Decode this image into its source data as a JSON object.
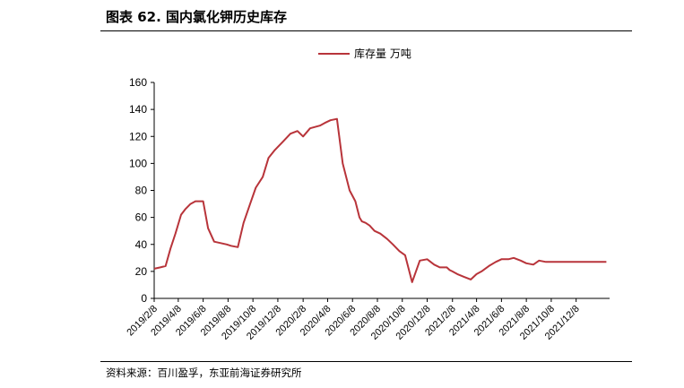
{
  "header": {
    "title": "图表 62. 国内氯化钾历史库存"
  },
  "footer": {
    "source": "资料来源：百川盈孚，东亚前海证券研究所"
  },
  "chart_data": {
    "type": "line",
    "title": "",
    "xlabel": "",
    "ylabel": "",
    "ylim": [
      0,
      160
    ],
    "yticks": [
      "0",
      "20",
      "40",
      "60",
      "80",
      "100",
      "120",
      "140",
      "160"
    ],
    "legend": {
      "position": "top",
      "entries": [
        "库存量 万吨"
      ]
    },
    "grid": false,
    "line_color": "#b8343a",
    "x_tick_labels": [
      "2019/2/8",
      "2019/4/8",
      "2019/6/8",
      "2019/8/8",
      "2019/10/8",
      "2019/12/8",
      "2020/2/8",
      "2020/4/8",
      "2020/6/8",
      "2020/8/8",
      "2020/10/8",
      "2020/12/8",
      "2021/2/8",
      "2021/4/8",
      "2021/6/8",
      "2021/8/8",
      "2021/10/8",
      "2021/12/8"
    ],
    "x_range_months": [
      "2019/2/8",
      "2022/2/28"
    ],
    "series": [
      {
        "name": "库存量 万吨",
        "x": [
          "2019/2/8",
          "2019/2/23",
          "2019/3/8",
          "2019/3/20",
          "2019/4/1",
          "2019/4/15",
          "2019/4/25",
          "2019/5/8",
          "2019/5/20",
          "2019/6/8",
          "2019/6/20",
          "2019/7/5",
          "2019/7/20",
          "2019/8/5",
          "2019/8/15",
          "2019/9/1",
          "2019/9/15",
          "2019/10/1",
          "2019/10/15",
          "2019/11/1",
          "2019/11/15",
          "2019/12/1",
          "2019/12/20",
          "2020/1/8",
          "2020/1/25",
          "2020/2/8",
          "2020/2/25",
          "2020/3/8",
          "2020/3/20",
          "2020/4/1",
          "2020/4/15",
          "2020/5/1",
          "2020/5/15",
          "2020/6/1",
          "2020/6/15",
          "2020/6/25",
          "2020/7/1",
          "2020/7/10",
          "2020/7/20",
          "2020/8/1",
          "2020/8/15",
          "2020/9/1",
          "2020/9/15",
          "2020/10/1",
          "2020/10/15",
          "2020/11/1",
          "2020/11/20",
          "2020/12/8",
          "2020/12/25",
          "2021/1/8",
          "2021/1/25",
          "2021/2/1",
          "2021/2/8",
          "2021/2/20",
          "2021/3/8",
          "2021/3/25",
          "2021/4/8",
          "2021/4/20",
          "2021/5/8",
          "2021/5/25",
          "2021/6/8",
          "2021/6/25",
          "2021/7/8",
          "2021/7/25",
          "2021/8/8",
          "2021/8/25",
          "2021/9/8",
          "2021/9/25",
          "2021/10/8",
          "2021/10/25",
          "2021/11/8",
          "2021/11/25",
          "2021/12/8",
          "2021/12/25",
          "2022/1/8",
          "2022/1/25",
          "2022/2/8",
          "2022/2/20"
        ],
        "values": [
          22,
          23,
          24,
          37,
          48,
          62,
          66,
          70,
          72,
          72,
          52,
          42,
          41,
          40,
          39,
          38,
          56,
          70,
          82,
          90,
          104,
          110,
          116,
          122,
          124,
          120,
          126,
          127,
          128,
          130,
          132,
          133,
          100,
          80,
          72,
          60,
          57,
          56,
          54,
          50,
          48,
          44,
          40,
          35,
          32,
          12,
          28,
          29,
          25,
          23,
          23,
          21,
          20,
          18,
          16,
          14,
          18,
          20,
          24,
          27,
          29,
          29,
          30,
          28,
          26,
          25,
          28,
          27,
          27,
          27,
          27,
          27,
          27,
          27,
          27,
          27,
          27,
          27
        ]
      }
    ]
  }
}
